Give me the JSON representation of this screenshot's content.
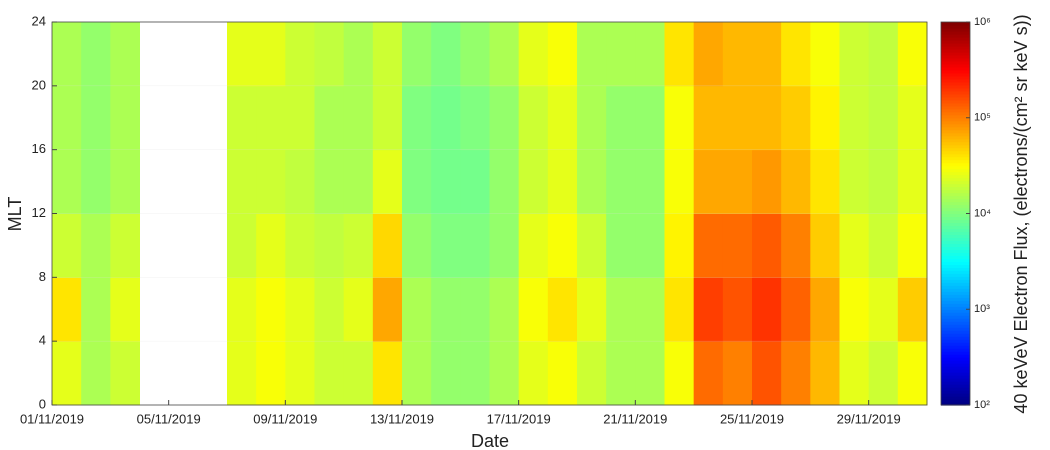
{
  "chart_data": {
    "type": "heatmap",
    "x": [
      "01/11/2019",
      "02/11/2019",
      "03/11/2019",
      "04/11/2019",
      "05/11/2019",
      "06/11/2019",
      "07/11/2019",
      "08/11/2019",
      "09/11/2019",
      "10/11/2019",
      "11/11/2019",
      "12/11/2019",
      "13/11/2019",
      "14/11/2019",
      "15/11/2019",
      "16/11/2019",
      "17/11/2019",
      "18/11/2019",
      "19/11/2019",
      "20/11/2019",
      "21/11/2019",
      "22/11/2019",
      "23/11/2019",
      "24/11/2019",
      "25/11/2019",
      "26/11/2019",
      "27/11/2019",
      "28/11/2019",
      "29/11/2019",
      "30/11/2019"
    ],
    "y_bins": [
      0,
      4,
      8,
      12,
      16,
      20,
      24
    ],
    "values": [
      [
        25000,
        15000,
        20000,
        null,
        null,
        null,
        25000,
        30000,
        25000,
        20000,
        20000,
        40000,
        15000,
        12000,
        12000,
        15000,
        25000,
        30000,
        20000,
        15000,
        15000,
        30000,
        120000,
        100000,
        150000,
        100000,
        60000,
        25000,
        20000,
        30000
      ],
      [
        40000,
        15000,
        25000,
        null,
        null,
        null,
        25000,
        30000,
        25000,
        20000,
        25000,
        70000,
        15000,
        12000,
        12000,
        15000,
        30000,
        40000,
        25000,
        15000,
        15000,
        40000,
        180000,
        150000,
        200000,
        130000,
        70000,
        30000,
        25000,
        50000
      ],
      [
        20000,
        15000,
        20000,
        null,
        null,
        null,
        20000,
        25000,
        20000,
        18000,
        20000,
        45000,
        12000,
        10000,
        10000,
        12000,
        25000,
        30000,
        20000,
        12000,
        12000,
        35000,
        120000,
        120000,
        140000,
        100000,
        50000,
        25000,
        20000,
        30000
      ],
      [
        15000,
        12000,
        15000,
        null,
        null,
        null,
        20000,
        20000,
        18000,
        15000,
        15000,
        25000,
        10000,
        9000,
        9000,
        12000,
        20000,
        25000,
        15000,
        12000,
        12000,
        30000,
        70000,
        70000,
        80000,
        60000,
        40000,
        20000,
        18000,
        25000
      ],
      [
        15000,
        12000,
        15000,
        null,
        null,
        null,
        20000,
        20000,
        20000,
        15000,
        15000,
        20000,
        10000,
        9000,
        10000,
        12000,
        20000,
        25000,
        15000,
        12000,
        12000,
        30000,
        60000,
        60000,
        60000,
        50000,
        35000,
        20000,
        18000,
        25000
      ],
      [
        15000,
        12000,
        15000,
        null,
        null,
        null,
        25000,
        25000,
        20000,
        18000,
        15000,
        20000,
        12000,
        10000,
        12000,
        15000,
        25000,
        30000,
        15000,
        15000,
        15000,
        40000,
        70000,
        60000,
        60000,
        40000,
        30000,
        20000,
        18000,
        30000
      ]
    ],
    "xtick_indices": [
      0,
      4,
      8,
      12,
      16,
      20,
      24,
      28
    ],
    "xlabel": "Date",
    "ylabel": "MLT",
    "ylim": [
      0,
      24
    ],
    "yticks": [
      0,
      4,
      8,
      12,
      16,
      20,
      24
    ],
    "colormap": "jet",
    "log_color": true,
    "clim": [
      100,
      1000000
    ],
    "cticks": [
      {
        "value": 100,
        "label": "10²"
      },
      {
        "value": 1000,
        "label": "10³"
      },
      {
        "value": 10000,
        "label": "10⁴"
      },
      {
        "value": 100000,
        "label": "10⁵"
      },
      {
        "value": 1000000,
        "label": "10⁶"
      }
    ],
    "clabel": "40 keVeV Electron Flux, (electrons/(cm² sr keV s))",
    "grid": true
  }
}
